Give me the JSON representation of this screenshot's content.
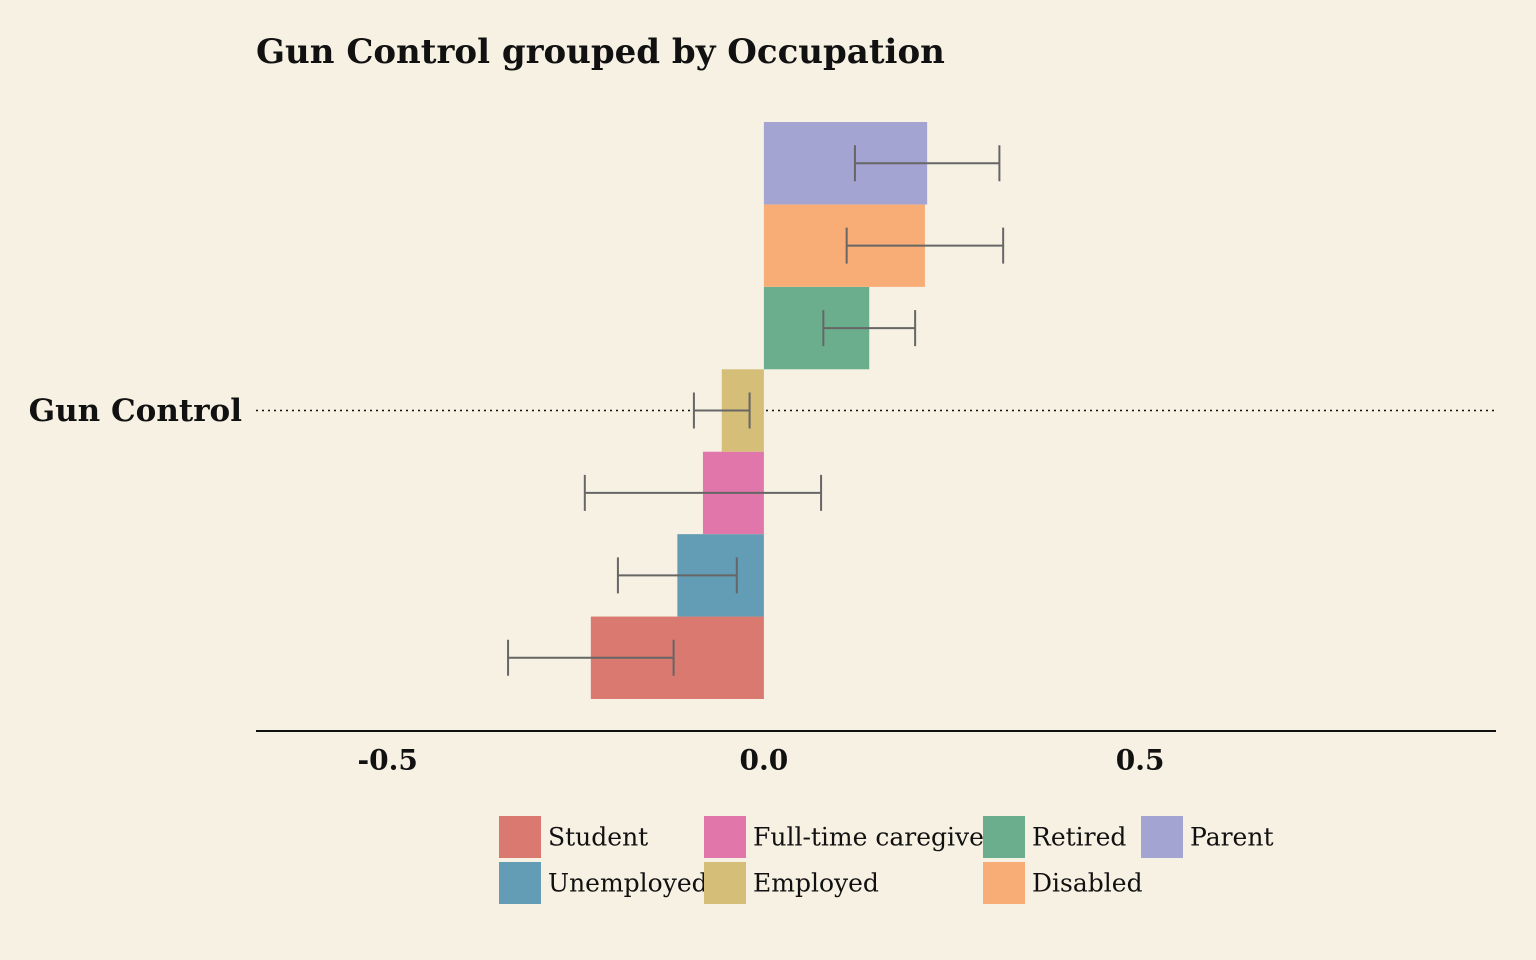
{
  "chart_data": {
    "type": "bar",
    "orientation": "horizontal",
    "title": "Gun Control grouped by Occupation",
    "categories": [
      "Gun Control"
    ],
    "series": [
      {
        "name": "Student",
        "color": "#d9796f",
        "values": [
          -0.23
        ],
        "errors": [
          0.11
        ]
      },
      {
        "name": "Unemployed",
        "color": "#639db5",
        "values": [
          -0.115
        ],
        "errors": [
          0.079
        ]
      },
      {
        "name": "Full-time caregiver",
        "color": "#e076aa",
        "values": [
          -0.081
        ],
        "errors": [
          0.157
        ]
      },
      {
        "name": "Employed",
        "color": "#d5bf78",
        "values": [
          -0.056
        ],
        "errors": [
          0.037
        ]
      },
      {
        "name": "Retired",
        "color": "#6aae8d",
        "values": [
          0.14
        ],
        "errors": [
          0.061
        ]
      },
      {
        "name": "Disabled",
        "color": "#f8ad77",
        "values": [
          0.214
        ],
        "errors": [
          0.104
        ]
      },
      {
        "name": "Parent",
        "color": "#a4a4d2",
        "values": [
          0.217
        ],
        "errors": [
          0.096
        ]
      }
    ],
    "xlim": [
      -0.675,
      0.973
    ],
    "xticks": [
      -0.5,
      {
        "value": 0,
        "label": "0.0"
      },
      0.5
    ]
  }
}
